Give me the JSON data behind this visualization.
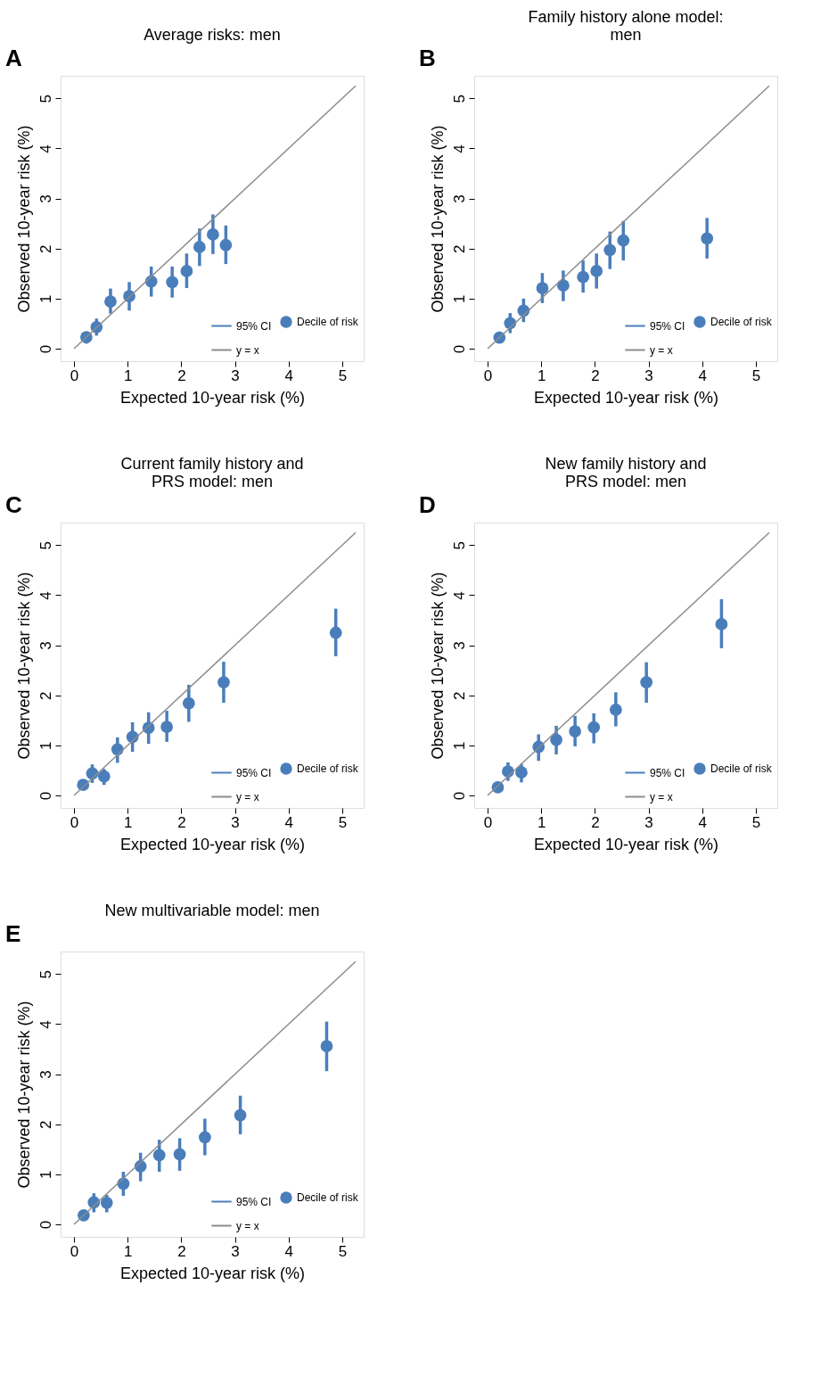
{
  "chart_data": [
    {
      "type": "scatter",
      "title": "Average risks: men",
      "xlabel": "Expected 10-year risk (%)",
      "ylabel": "Observed 10-year risk (%)",
      "annotations": [
        "A",
        "95% CI"
      ],
      "xlim": [
        -0.25,
        5.4
      ],
      "ylim": [
        -0.25,
        5.45
      ],
      "xticks": [
        0,
        1,
        2,
        3,
        4,
        5
      ],
      "yticks": [
        0,
        1,
        2,
        3,
        4,
        5
      ],
      "grid": false,
      "legend": "bottom right",
      "series": [
        {
          "name": "Decile of risk",
          "type": "scatter",
          "marker": "circle",
          "color": "#4a7ebb",
          "x": [
            0.23,
            0.42,
            0.68,
            1.03,
            1.44,
            1.83,
            2.1,
            2.34,
            2.59,
            2.83
          ],
          "values": [
            0.23,
            0.43,
            0.94,
            1.05,
            1.34,
            1.33,
            1.55,
            2.03,
            2.28,
            2.07
          ],
          "errors": [
            [
              0.1,
              0.34
            ],
            [
              0.26,
              0.6
            ],
            [
              0.7,
              1.2
            ],
            [
              0.76,
              1.33
            ],
            [
              1.04,
              1.64
            ],
            [
              1.02,
              1.64
            ],
            [
              1.21,
              1.9
            ],
            [
              1.65,
              2.4
            ],
            [
              1.89,
              2.68
            ],
            [
              1.69,
              2.46
            ]
          ]
        },
        {
          "name": "y = x",
          "type": "line",
          "marker": "none",
          "line_style": "solid",
          "color": "#8c8c8c",
          "x": [
            0,
            5.25
          ],
          "values": [
            0,
            5.25
          ]
        }
      ]
    },
    {
      "type": "scatter",
      "title": "Family history alone model:\nmen",
      "xlabel": "Expected 10-year risk (%)",
      "ylabel": "Observed 10-year risk (%)",
      "annotations": [
        "B",
        "95% CI"
      ],
      "xlim": [
        -0.25,
        5.4
      ],
      "ylim": [
        -0.25,
        5.45
      ],
      "xticks": [
        0,
        1,
        2,
        3,
        4,
        5
      ],
      "yticks": [
        0,
        1,
        2,
        3,
        4,
        5
      ],
      "grid": false,
      "legend": "bottom right",
      "series": [
        {
          "name": "Decile of risk",
          "type": "scatter",
          "marker": "circle",
          "color": "#4a7ebb",
          "x": [
            0.22,
            0.42,
            0.67,
            1.02,
            1.41,
            1.78,
            2.03,
            2.28,
            2.53,
            4.09
          ],
          "values": [
            0.22,
            0.51,
            0.76,
            1.21,
            1.26,
            1.43,
            1.55,
            1.97,
            2.16,
            2.2
          ],
          "errors": [
            [
              0.11,
              0.34
            ],
            [
              0.31,
              0.71
            ],
            [
              0.53,
              1.0
            ],
            [
              0.91,
              1.51
            ],
            [
              0.95,
              1.56
            ],
            [
              1.12,
              1.76
            ],
            [
              1.2,
              1.9
            ],
            [
              1.59,
              2.34
            ],
            [
              1.76,
              2.55
            ],
            [
              1.8,
              2.61
            ]
          ]
        },
        {
          "name": "y = x",
          "type": "line",
          "marker": "none",
          "line_style": "solid",
          "color": "#8c8c8c",
          "x": [
            0,
            5.25
          ],
          "values": [
            0,
            5.25
          ]
        }
      ]
    },
    {
      "type": "scatter",
      "title": "Current family history and\nPRS model: men",
      "xlabel": "Expected 10-year risk (%)",
      "ylabel": "Observed 10-year risk (%)",
      "annotations": [
        "C",
        "95% CI"
      ],
      "xlim": [
        -0.25,
        5.4
      ],
      "ylim": [
        -0.25,
        5.45
      ],
      "xticks": [
        0,
        1,
        2,
        3,
        4,
        5
      ],
      "yticks": [
        0,
        1,
        2,
        3,
        4,
        5
      ],
      "grid": false,
      "legend": "bottom right",
      "series": [
        {
          "name": "Decile of risk",
          "type": "scatter",
          "marker": "circle",
          "color": "#4a7ebb",
          "x": [
            0.17,
            0.34,
            0.56,
            0.81,
            1.09,
            1.39,
            1.73,
            2.14,
            2.79,
            4.88
          ],
          "values": [
            0.21,
            0.44,
            0.38,
            0.92,
            1.17,
            1.35,
            1.37,
            1.84,
            2.26,
            3.25
          ],
          "errors": [
            [
              0.12,
              0.29
            ],
            [
              0.25,
              0.62
            ],
            [
              0.21,
              0.53
            ],
            [
              0.65,
              1.16
            ],
            [
              0.87,
              1.46
            ],
            [
              1.03,
              1.66
            ],
            [
              1.07,
              1.69
            ],
            [
              1.47,
              2.21
            ],
            [
              1.85,
              2.67
            ],
            [
              2.78,
              3.73
            ]
          ]
        },
        {
          "name": "y = x",
          "type": "line",
          "marker": "none",
          "line_style": "solid",
          "color": "#8c8c8c",
          "x": [
            0,
            5.25
          ],
          "values": [
            0,
            5.25
          ]
        }
      ]
    },
    {
      "type": "scatter",
      "title": "New family history and\nPRS model: men",
      "xlabel": "Expected 10-year risk (%)",
      "ylabel": "Observed 10-year risk (%)",
      "annotations": [
        "D",
        "95% CI"
      ],
      "xlim": [
        -0.25,
        5.4
      ],
      "ylim": [
        -0.25,
        5.45
      ],
      "xticks": [
        0,
        1,
        2,
        3,
        4,
        5
      ],
      "yticks": [
        0,
        1,
        2,
        3,
        4,
        5
      ],
      "grid": false,
      "legend": "bottom right",
      "series": [
        {
          "name": "Decile of risk",
          "type": "scatter",
          "marker": "circle",
          "color": "#4a7ebb",
          "x": [
            0.19,
            0.38,
            0.63,
            0.95,
            1.28,
            1.63,
            1.98,
            2.39,
            2.96,
            4.36
          ],
          "values": [
            0.16,
            0.48,
            0.46,
            0.97,
            1.11,
            1.28,
            1.36,
            1.71,
            2.26,
            3.42
          ],
          "errors": [
            [
              0.08,
              0.24
            ],
            [
              0.29,
              0.66
            ],
            [
              0.26,
              0.63
            ],
            [
              0.69,
              1.22
            ],
            [
              0.82,
              1.39
            ],
            [
              0.98,
              1.59
            ],
            [
              1.04,
              1.64
            ],
            [
              1.38,
              2.06
            ],
            [
              1.85,
              2.66
            ],
            [
              2.94,
              3.92
            ]
          ]
        },
        {
          "name": "y = x",
          "type": "line",
          "marker": "none",
          "line_style": "solid",
          "color": "#8c8c8c",
          "x": [
            0,
            5.25
          ],
          "values": [
            0,
            5.25
          ]
        }
      ]
    },
    {
      "type": "scatter",
      "title": "New multivariable model: men",
      "xlabel": "Expected 10-year risk (%)",
      "ylabel": "Observed 10-year risk (%)",
      "annotations": [
        "E",
        "95% CI"
      ],
      "xlim": [
        -0.25,
        5.4
      ],
      "ylim": [
        -0.25,
        5.45
      ],
      "xticks": [
        0,
        1,
        2,
        3,
        4,
        5
      ],
      "yticks": [
        0,
        1,
        2,
        3,
        4,
        5
      ],
      "grid": false,
      "legend": "bottom right",
      "series": [
        {
          "name": "Decile of risk",
          "type": "scatter",
          "marker": "circle",
          "color": "#4a7ebb",
          "x": [
            0.18,
            0.37,
            0.61,
            0.92,
            1.24,
            1.59,
            1.97,
            2.44,
            3.1,
            4.71
          ],
          "values": [
            0.18,
            0.44,
            0.43,
            0.81,
            1.16,
            1.38,
            1.4,
            1.74,
            2.18,
            3.56
          ],
          "errors": [
            [
              0.09,
              0.27
            ],
            [
              0.24,
              0.62
            ],
            [
              0.24,
              0.59
            ],
            [
              0.57,
              1.05
            ],
            [
              0.86,
              1.43
            ],
            [
              1.05,
              1.69
            ],
            [
              1.07,
              1.72
            ],
            [
              1.38,
              2.11
            ],
            [
              1.8,
              2.57
            ],
            [
              3.06,
              4.05
            ]
          ]
        },
        {
          "name": "y = x",
          "type": "line",
          "marker": "none",
          "line_style": "solid",
          "color": "#8c8c8c",
          "x": [
            0,
            5.25
          ],
          "values": [
            0,
            5.25
          ]
        }
      ]
    }
  ]
}
